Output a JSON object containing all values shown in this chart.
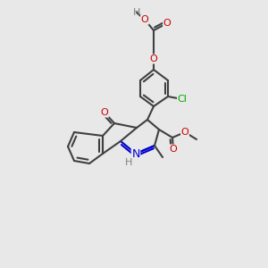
{
  "bg_color": "#e8e8e8",
  "bond_color": "#404040",
  "bond_width": 1.5,
  "atom_colors": {
    "O": "#cc0000",
    "N": "#0000cc",
    "Cl": "#00aa00",
    "C": "#404040",
    "H": "#808080"
  },
  "font_size": 9
}
